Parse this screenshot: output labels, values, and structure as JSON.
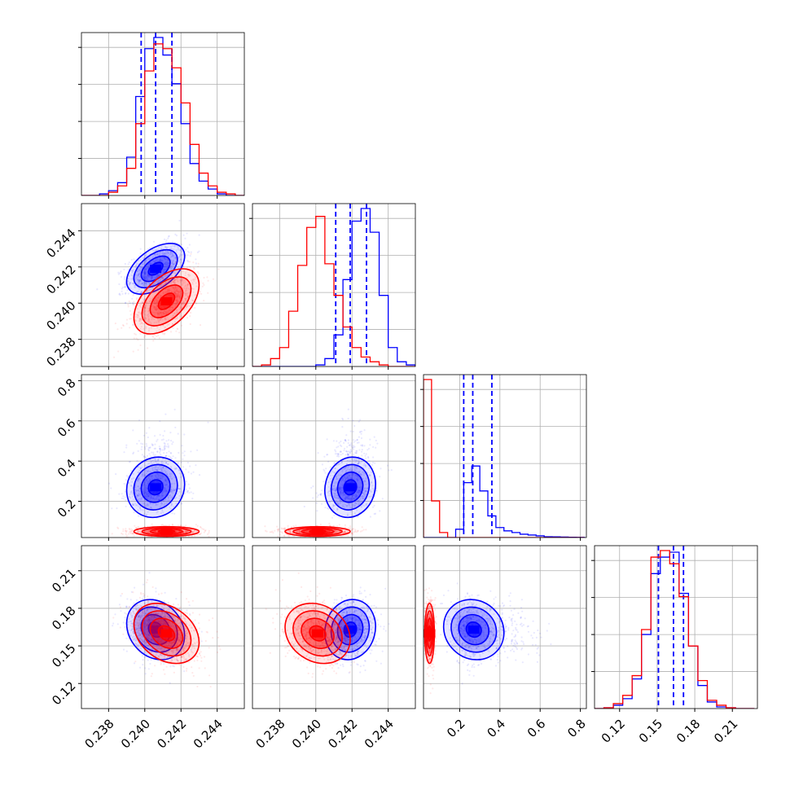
{
  "colors": {
    "series_a": "#0000ff",
    "series_b": "#ff0000",
    "grid": "#b0b0b0",
    "frame": "#000000"
  },
  "chart_data": {
    "type": "corner",
    "title": "",
    "grid": true,
    "parameters": [
      {
        "range": [
          0.2365,
          0.2455
        ],
        "ticks": [
          0.238,
          0.24,
          0.242,
          0.244
        ],
        "tick_labels": [
          "0.238",
          "0.240",
          "0.242",
          "0.244"
        ]
      },
      {
        "range": [
          0.2365,
          0.2455
        ],
        "ticks": [
          0.238,
          0.24,
          0.242,
          0.244
        ],
        "tick_labels": [
          "0.238",
          "0.240",
          "0.242",
          "0.244"
        ]
      },
      {
        "range": [
          0.02,
          0.83
        ],
        "ticks": [
          0.2,
          0.4,
          0.6,
          0.8
        ],
        "tick_labels": [
          "0.2",
          "0.4",
          "0.6",
          "0.8"
        ]
      },
      {
        "range": [
          0.1,
          0.23
        ],
        "ticks": [
          0.12,
          0.15,
          0.18,
          0.21
        ],
        "tick_labels": [
          "0.12",
          "0.15",
          "0.18",
          "0.21"
        ]
      }
    ],
    "series": [
      {
        "color_key": "series_a",
        "quantiles": [
          [
            0.2398,
            0.2406,
            0.2415
          ],
          [
            0.2411,
            0.2419,
            0.2428
          ],
          [
            0.22,
            0.265,
            0.36
          ],
          [
            0.151,
            0.163,
            0.171
          ]
        ],
        "means": [
          0.2406,
          0.2419,
          0.27,
          0.163
        ],
        "sds": [
          0.0008,
          0.0007,
          0.075,
          0.012
        ],
        "correlations": [
          [
            0,
            1,
            0.5
          ],
          [
            0,
            3,
            -0.2
          ],
          [
            1,
            3,
            0.1
          ],
          [
            2,
            3,
            -0.1
          ],
          [
            0,
            2,
            0.1
          ],
          [
            1,
            2,
            0.1
          ]
        ],
        "histograms": [
          {
            "edges": [
              0.2365,
              0.237,
              0.2375,
              0.238,
              0.2385,
              0.239,
              0.2395,
              0.24,
              0.2405,
              0.241,
              0.2415,
              0.242,
              0.2425,
              0.243,
              0.2435,
              0.244,
              0.2445,
              0.245,
              0.2455
            ],
            "values": [
              0,
              0,
              1,
              3,
              8,
              24,
              62,
              92,
              99,
              88,
              70,
              45,
              20,
              9,
              4,
              1,
              0,
              0
            ]
          },
          {
            "edges": [
              0.2365,
              0.237,
              0.2375,
              0.238,
              0.2385,
              0.239,
              0.2395,
              0.24,
              0.2405,
              0.241,
              0.2415,
              0.242,
              0.2425,
              0.243,
              0.2435,
              0.244,
              0.2445,
              0.245,
              0.2455
            ],
            "values": [
              0,
              0,
              0,
              0,
              0,
              0,
              0,
              1,
              5,
              20,
              55,
              92,
              100,
              85,
              45,
              12,
              3,
              1
            ]
          },
          {
            "edges": [
              0.02,
              0.06,
              0.1,
              0.14,
              0.18,
              0.22,
              0.26,
              0.3,
              0.34,
              0.38,
              0.42,
              0.46,
              0.5,
              0.54,
              0.58,
              0.62,
              0.66,
              0.7,
              0.74,
              0.78,
              0.82
            ],
            "values": [
              0,
              0,
              0,
              0,
              5,
              33,
              43,
              28,
              13,
              6,
              4,
              3,
              2,
              1.5,
              1,
              0.5,
              0.4,
              0.3,
              0.2,
              0.1
            ]
          },
          {
            "edges": [
              0.1,
              0.1075,
              0.115,
              0.1225,
              0.13,
              0.1375,
              0.145,
              0.1525,
              0.16,
              0.1675,
              0.175,
              0.1825,
              0.19,
              0.1975,
              0.205,
              0.2125,
              0.22,
              0.2275
            ],
            "values": [
              0,
              0.5,
              2,
              6,
              18,
              45,
              82,
              92,
              95,
              70,
              38,
              14,
              4,
              1,
              0.5,
              0,
              0
            ]
          }
        ]
      },
      {
        "color_key": "series_b",
        "quantiles": [],
        "means": [
          0.2412,
          0.2401,
          0.05,
          0.16
        ],
        "sds": [
          0.0009,
          0.0009,
          0.012,
          0.012
        ],
        "correlations": [
          [
            0,
            1,
            0.5
          ],
          [
            0,
            3,
            -0.3
          ],
          [
            1,
            3,
            -0.2
          ],
          [
            2,
            3,
            0
          ],
          [
            0,
            2,
            0
          ],
          [
            1,
            2,
            0
          ]
        ],
        "histograms": [
          {
            "edges": [
              0.2365,
              0.237,
              0.2375,
              0.238,
              0.2385,
              0.239,
              0.2395,
              0.24,
              0.2405,
              0.241,
              0.2415,
              0.242,
              0.2425,
              0.243,
              0.2435,
              0.244,
              0.2445,
              0.245,
              0.2455
            ],
            "values": [
              0,
              0,
              0,
              2,
              6,
              17,
              45,
              78,
              95,
              92,
              80,
              58,
              32,
              14,
              6,
              2,
              1,
              0
            ]
          },
          {
            "edges": [
              0.2365,
              0.237,
              0.2375,
              0.238,
              0.2385,
              0.239,
              0.2395,
              0.24,
              0.2405,
              0.241,
              0.2415,
              0.242,
              0.2425,
              0.243,
              0.2435,
              0.244,
              0.2445,
              0.245,
              0.2455
            ],
            "values": [
              0,
              1,
              5,
              12,
              35,
              64,
              88,
              95,
              65,
              45,
              25,
              12,
              6,
              3,
              1,
              0,
              0,
              0
            ]
          },
          {
            "edges": [
              0.02,
              0.06,
              0.1,
              0.14,
              0.18,
              0.22,
              0.26,
              0.3,
              0.34,
              0.38,
              0.42,
              0.46,
              0.5,
              0.54,
              0.58,
              0.62,
              0.66,
              0.7,
              0.74,
              0.78,
              0.82
            ],
            "values": [
              95,
              22,
              3,
              0,
              0,
              0,
              0,
              0,
              0,
              0,
              0,
              0,
              0,
              0,
              0,
              0,
              0,
              0,
              0,
              0
            ]
          },
          {
            "edges": [
              0.1,
              0.1075,
              0.115,
              0.1225,
              0.13,
              0.1375,
              0.145,
              0.1525,
              0.16,
              0.1675,
              0.175,
              0.1825,
              0.19,
              0.1975,
              0.205,
              0.2125,
              0.22,
              0.2275
            ],
            "values": [
              0,
              0.5,
              3,
              8,
              20,
              48,
              92,
              96,
              88,
              68,
              38,
              17,
              5,
              2,
              0.5,
              0,
              0
            ]
          }
        ]
      }
    ]
  }
}
